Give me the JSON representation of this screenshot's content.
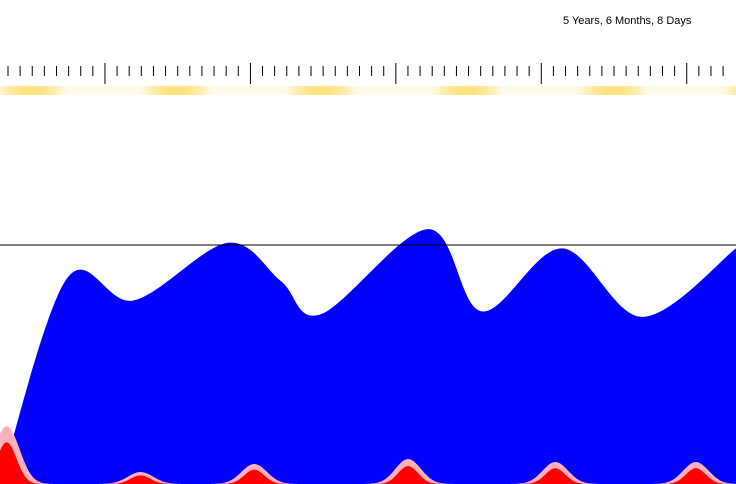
{
  "simulation": {
    "elapsed_label": "5 Years, 6 Months, 8 Days"
  },
  "colors": {
    "background": "#ffffff",
    "healthy_population": "#0000ff",
    "infected_light": "#ffb0b8",
    "infected_severe": "#ff0000",
    "season_band": "#ffe27a",
    "ruler_ticks": "#000000",
    "threshold_line": "#000000"
  },
  "graph": {
    "type": "area",
    "series": [
      {
        "color": "healthy_population",
        "x": [
          0,
          0.5,
          1,
          1.7,
          2.1,
          2.4,
          3.2,
          3.6,
          4.2,
          4.8,
          5.5
        ],
        "y": [
          0,
          0.75,
          0.67,
          0.88,
          0.74,
          0.62,
          0.93,
          0.63,
          0.86,
          0.61,
          0.86
        ]
      }
    ]
  }
}
